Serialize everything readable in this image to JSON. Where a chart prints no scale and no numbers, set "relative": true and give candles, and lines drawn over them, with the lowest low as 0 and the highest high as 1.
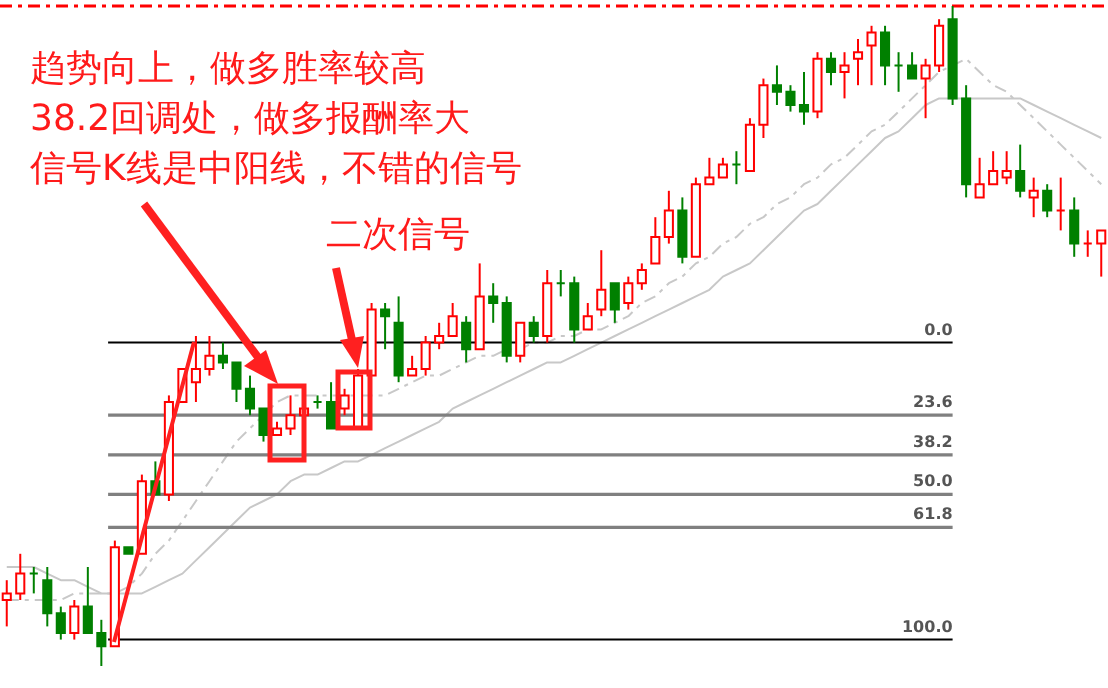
{
  "chart_data": {
    "type": "candlestick",
    "relative": true,
    "tick_labels": false,
    "annotations": [
      "趋势向上，做多胜率较高",
      "38.2回调处，做多报酬率大",
      "信号K线是中阳线，不错的信号",
      "二次信号",
      {
        "text": "0.0",
        "y": 0.49
      },
      {
        "text": "23.6",
        "y": 0.38
      },
      {
        "text": "38.2",
        "y": 0.32
      },
      {
        "text": "50.0",
        "y": 0.26
      },
      {
        "text": "61.8",
        "y": 0.21
      },
      {
        "text": "100.0",
        "y": 0.04
      }
    ],
    "categories": [
      null,
      null,
      null,
      null,
      null,
      null,
      null,
      null,
      null,
      null,
      null,
      null,
      null,
      null,
      null,
      null,
      null,
      null,
      null,
      null,
      null,
      null,
      null,
      null,
      null,
      null,
      null,
      null,
      null,
      null,
      null,
      null,
      null,
      null,
      null,
      null,
      null,
      null,
      null,
      null,
      null,
      null,
      null,
      null,
      null,
      null,
      null,
      null,
      null,
      null,
      null,
      null,
      null,
      null,
      null,
      null,
      null,
      null,
      null,
      null,
      null,
      null,
      null,
      null,
      null,
      null,
      null,
      null,
      null,
      null,
      null,
      null,
      null,
      null,
      null,
      null,
      null,
      null,
      null,
      null,
      null,
      null
    ],
    "ohlc": [
      [
        0.1,
        0.13,
        0.06,
        0.11
      ],
      [
        0.11,
        0.17,
        0.1,
        0.14
      ],
      [
        0.14,
        0.15,
        0.11,
        0.14
      ],
      [
        0.13,
        0.15,
        0.06,
        0.08
      ],
      [
        0.08,
        0.09,
        0.04,
        0.05
      ],
      [
        0.05,
        0.1,
        0.04,
        0.09
      ],
      [
        0.09,
        0.15,
        0.05,
        0.05
      ],
      [
        0.05,
        0.07,
        0,
        0.03
      ],
      [
        0.03,
        0.19,
        0.03,
        0.18
      ],
      [
        0.18,
        0.18,
        0.17,
        0.17
      ],
      [
        0.17,
        0.29,
        0.17,
        0.28
      ],
      [
        0.28,
        0.31,
        0.26,
        0.26
      ],
      [
        0.26,
        0.41,
        0.25,
        0.4
      ],
      [
        0.4,
        0.45,
        0.4,
        0.45
      ],
      [
        0.43,
        0.5,
        0.4,
        0.45
      ],
      [
        0.45,
        0.5,
        0.44,
        0.47
      ],
      [
        0.47,
        0.49,
        0.45,
        0.46
      ],
      [
        0.46,
        0.46,
        0.4,
        0.42
      ],
      [
        0.42,
        0.44,
        0.38,
        0.39
      ],
      [
        0.39,
        0.39,
        0.34,
        0.35
      ],
      [
        0.35,
        0.37,
        0.35,
        0.36
      ],
      [
        0.36,
        0.41,
        0.35,
        0.38
      ],
      [
        0.38,
        0.4,
        0.38,
        0.39
      ],
      [
        0.4,
        0.41,
        0.39,
        0.4
      ],
      [
        0.4,
        0.43,
        0.36,
        0.36
      ],
      [
        0.39,
        0.42,
        0.38,
        0.41
      ],
      [
        0.36,
        0.45,
        0.36,
        0.44
      ],
      [
        0.44,
        0.55,
        0.44,
        0.54
      ],
      [
        0.54,
        0.55,
        0.48,
        0.53
      ],
      [
        0.52,
        0.56,
        0.43,
        0.44
      ],
      [
        0.44,
        0.47,
        0.44,
        0.45
      ],
      [
        0.45,
        0.5,
        0.44,
        0.49
      ],
      [
        0.49,
        0.52,
        0.48,
        0.5
      ],
      [
        0.5,
        0.55,
        0.5,
        0.53
      ],
      [
        0.52,
        0.53,
        0.46,
        0.48
      ],
      [
        0.48,
        0.61,
        0.48,
        0.56
      ],
      [
        0.56,
        0.58,
        0.52,
        0.55
      ],
      [
        0.55,
        0.56,
        0.46,
        0.47
      ],
      [
        0.47,
        0.52,
        0.46,
        0.52
      ],
      [
        0.52,
        0.53,
        0.49,
        0.5
      ],
      [
        0.5,
        0.6,
        0.49,
        0.58
      ],
      [
        0.58,
        0.6,
        0.56,
        0.58
      ],
      [
        0.58,
        0.59,
        0.49,
        0.51
      ],
      [
        0.51,
        0.55,
        0.51,
        0.53
      ],
      [
        0.54,
        0.63,
        0.53,
        0.57
      ],
      [
        0.58,
        0.58,
        0.52,
        0.54
      ],
      [
        0.55,
        0.59,
        0.54,
        0.58
      ],
      [
        0.58,
        0.61,
        0.57,
        0.6
      ],
      [
        0.61,
        0.68,
        0.61,
        0.65
      ],
      [
        0.65,
        0.72,
        0.64,
        0.69
      ],
      [
        0.69,
        0.71,
        0.61,
        0.62
      ],
      [
        0.62,
        0.74,
        0.62,
        0.73
      ],
      [
        0.73,
        0.77,
        0.73,
        0.74
      ],
      [
        0.74,
        0.77,
        0.74,
        0.76
      ],
      [
        0.76,
        0.78,
        0.73,
        0.76
      ],
      [
        0.75,
        0.83,
        0.75,
        0.82
      ],
      [
        0.82,
        0.89,
        0.8,
        0.88
      ],
      [
        0.88,
        0.91,
        0.85,
        0.87
      ],
      [
        0.87,
        0.88,
        0.84,
        0.85
      ],
      [
        0.85,
        0.9,
        0.82,
        0.84
      ],
      [
        0.84,
        0.93,
        0.83,
        0.92
      ],
      [
        0.92,
        0.93,
        0.88,
        0.9
      ],
      [
        0.9,
        0.93,
        0.86,
        0.91
      ],
      [
        0.92,
        0.95,
        0.88,
        0.93
      ],
      [
        0.94,
        0.97,
        0.88,
        0.96
      ],
      [
        0.96,
        0.97,
        0.88,
        0.91
      ],
      [
        0.91,
        0.93,
        0.87,
        0.91
      ],
      [
        0.91,
        0.93,
        0.89,
        0.89
      ],
      [
        0.89,
        0.92,
        0.83,
        0.91
      ],
      [
        0.91,
        0.98,
        0.9,
        0.97
      ],
      [
        0.98,
        1,
        0.85,
        0.86
      ],
      [
        0.86,
        0.88,
        0.71,
        0.73
      ],
      [
        0.71,
        0.77,
        0.71,
        0.73
      ],
      [
        0.73,
        0.78,
        0.73,
        0.75
      ],
      [
        0.74,
        0.78,
        0.73,
        0.75
      ],
      [
        0.75,
        0.79,
        0.71,
        0.72
      ],
      [
        0.71,
        0.74,
        0.68,
        0.72
      ],
      [
        0.72,
        0.73,
        0.68,
        0.69
      ],
      [
        0.69,
        0.74,
        0.66,
        0.69
      ],
      [
        0.69,
        0.71,
        0.62,
        0.64
      ],
      [
        0.64,
        0.66,
        0.62,
        0.64
      ],
      [
        0.64,
        0.66,
        0.59,
        0.66
      ]
    ],
    "colors": [
      "#ff0000",
      "#ff0000",
      "#008000",
      "#008000",
      "#008000",
      "#ff0000",
      "#008000",
      "#008000",
      "#ff0000",
      "#008000",
      "#ff0000",
      "#008000",
      "#ff0000",
      "#ff0000",
      "#ff0000",
      "#ff0000",
      "#008000",
      "#008000",
      "#008000",
      "#008000",
      "#ff0000",
      "#ff0000",
      "#ff0000",
      "#008000",
      "#008000",
      "#ff0000",
      "#ff0000",
      "#ff0000",
      "#008000",
      "#008000",
      "#ff0000",
      "#ff0000",
      "#ff0000",
      "#ff0000",
      "#008000",
      "#ff0000",
      "#008000",
      "#008000",
      "#ff0000",
      "#008000",
      "#ff0000",
      "#008000",
      "#008000",
      "#ff0000",
      "#ff0000",
      "#008000",
      "#ff0000",
      "#ff0000",
      "#ff0000",
      "#ff0000",
      "#008000",
      "#ff0000",
      "#ff0000",
      "#ff0000",
      "#008000",
      "#ff0000",
      "#ff0000",
      "#008000",
      "#008000",
      "#008000",
      "#ff0000",
      "#008000",
      "#ff0000",
      "#ff0000",
      "#ff0000",
      "#008000",
      "#008000",
      "#008000",
      "#ff0000",
      "#ff0000",
      "#008000",
      "#008000",
      "#ff0000",
      "#ff0000",
      "#ff0000",
      "#008000",
      "#ff0000",
      "#008000",
      "#ff0000",
      "#008000",
      "#ff0000",
      "#ff0000"
    ],
    "series": [
      {
        "type": "line",
        "color": "#c8c8c8",
        "line_style": "dashed",
        "values": [
          0.1,
          0.1,
          0.1,
          0.1,
          0.1,
          0.11,
          0.11,
          0.11,
          0.11,
          0.12,
          0.14,
          0.17,
          0.19,
          0.22,
          0.25,
          0.28,
          0.31,
          0.34,
          0.36,
          0.38,
          0.4,
          0.41,
          0.41,
          0.41,
          0.41,
          0.41,
          0.41,
          0.41,
          0.41,
          0.42,
          0.43,
          0.44,
          0.44,
          0.45,
          0.46,
          0.47,
          0.47,
          0.48,
          0.48,
          0.49,
          0.49,
          0.5,
          0.5,
          0.51,
          0.51,
          0.52,
          0.53,
          0.55,
          0.56,
          0.58,
          0.59,
          0.61,
          0.62,
          0.64,
          0.65,
          0.67,
          0.68,
          0.7,
          0.71,
          0.73,
          0.74,
          0.76,
          0.77,
          0.79,
          0.81,
          0.82,
          0.84,
          0.86,
          0.88,
          0.9,
          0.91,
          0.92,
          0.9,
          0.88,
          0.87,
          0.85,
          0.83,
          0.81,
          0.79,
          0.77,
          0.75,
          0.73
        ]
      },
      {
        "type": "line",
        "color": "#c8c8c8",
        "line_style": "solid",
        "values": [
          0.15,
          0.15,
          0.15,
          0.14,
          0.13,
          0.13,
          0.12,
          0.11,
          0.11,
          0.11,
          0.11,
          0.12,
          0.13,
          0.14,
          0.16,
          0.18,
          0.2,
          0.22,
          0.24,
          0.25,
          0.26,
          0.28,
          0.29,
          0.29,
          0.3,
          0.31,
          0.31,
          0.32,
          0.33,
          0.34,
          0.35,
          0.36,
          0.37,
          0.39,
          0.4,
          0.41,
          0.42,
          0.43,
          0.44,
          0.45,
          0.46,
          0.46,
          0.47,
          0.48,
          0.49,
          0.5,
          0.51,
          0.52,
          0.53,
          0.54,
          0.55,
          0.56,
          0.57,
          0.59,
          0.6,
          0.61,
          0.63,
          0.65,
          0.67,
          0.69,
          0.7,
          0.72,
          0.74,
          0.76,
          0.78,
          0.8,
          0.81,
          0.83,
          0.85,
          0.86,
          0.86,
          0.86,
          0.86,
          0.86,
          0.86,
          0.86,
          0.85,
          0.84,
          0.83,
          0.82,
          0.81,
          0.8
        ]
      }
    ],
    "ref_lines": [
      {
        "axis": "y",
        "value": 0.49,
        "color": "#000000"
      },
      {
        "axis": "y",
        "value": 0.38,
        "color": "#808080"
      },
      {
        "axis": "y",
        "value": 0.32,
        "color": "#808080"
      },
      {
        "axis": "y",
        "value": 0.26,
        "color": "#808080"
      },
      {
        "axis": "y",
        "value": 0.21,
        "color": "#808080"
      },
      {
        "axis": "y",
        "value": 0.04,
        "color": "#000000"
      },
      {
        "axis": "y",
        "value": 1,
        "color": "#ff0000",
        "line_style": "dashed"
      }
    ]
  }
}
